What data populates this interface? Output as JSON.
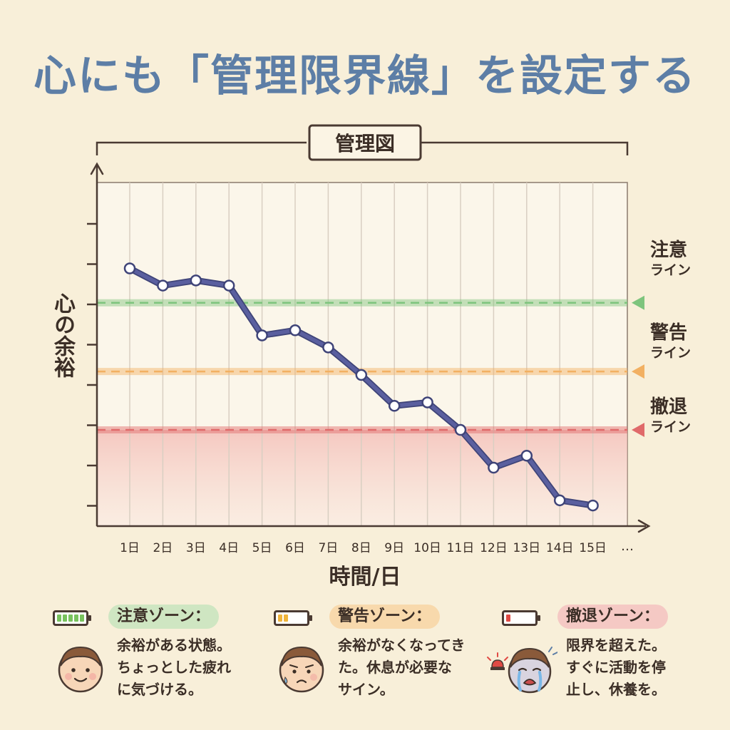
{
  "title": "心にも「管理限界線」を設定する",
  "chart_data": {
    "type": "line",
    "title": "管理図",
    "ylabel": "心の余裕",
    "xlabel": "時間/日",
    "categories": [
      "1日",
      "2日",
      "3日",
      "4日",
      "5日",
      "6日",
      "7日",
      "8日",
      "9日",
      "10日",
      "11日",
      "12日",
      "13日",
      "14日",
      "15日"
    ],
    "x_more": "…",
    "ylim": [
      0,
      10
    ],
    "series": [
      {
        "values": [
          7.5,
          7.0,
          7.15,
          7.0,
          5.55,
          5.7,
          5.2,
          4.4,
          3.5,
          3.6,
          2.8,
          1.7,
          2.05,
          0.75,
          0.6
        ]
      }
    ],
    "control_lines": [
      {
        "label_line1": "注意",
        "label_line2": "ライン",
        "value": 6.5,
        "color": "#7ec47d"
      },
      {
        "label_line1": "警告",
        "label_line2": "ライン",
        "value": 4.5,
        "color": "#f2b062"
      },
      {
        "label_line1": "撤退",
        "label_line2": "ライン",
        "value": 2.8,
        "color": "#e06a6a"
      }
    ],
    "grid": true,
    "line_color": "#5a5f9f"
  },
  "zones": [
    {
      "name": "注意ゾーン：",
      "lines": [
        "余裕がある状態。",
        "ちょっとした疲れ",
        "に気づける。"
      ],
      "pill_color": "#cfe6c2",
      "battery_color": "#79c25e",
      "battery_cells": 5,
      "face": "smile-face-icon"
    },
    {
      "name": "警告ゾーン：",
      "lines": [
        "余裕がなくなってき",
        "た。休息が必要な",
        "サイン。"
      ],
      "pill_color": "#f8d9ac",
      "battery_color": "#f0b43c",
      "battery_cells": 2,
      "face": "worried-face-icon"
    },
    {
      "name": "撤退ゾーン：",
      "lines": [
        "限界を超えた。",
        "すぐに活動を停",
        "止し、休養を。"
      ],
      "pill_color": "#f5c9c4",
      "battery_color": "#e04a44",
      "battery_cells": 1,
      "face": "crying-face-icon"
    }
  ]
}
